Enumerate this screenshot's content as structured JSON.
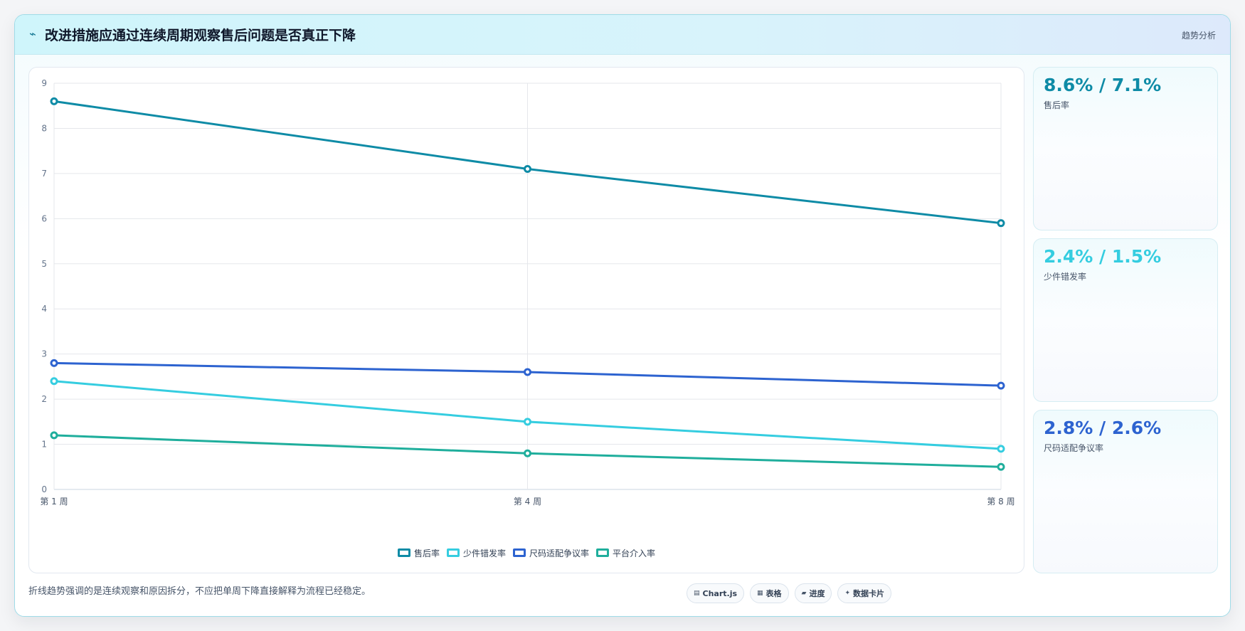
{
  "header": {
    "icon": "bolt-icon",
    "title": "改进措施应通过连续周期观察售后问题是否真正下降",
    "tag": "趋势分析"
  },
  "chart_data": {
    "type": "line",
    "categories": [
      "第 1 周",
      "第 4 周",
      "第 8 周"
    ],
    "ylim": [
      0,
      9
    ],
    "yticks": [
      0,
      1,
      2,
      3,
      4,
      5,
      6,
      7,
      8,
      9
    ],
    "grid": true,
    "legend_position": "bottom",
    "series": [
      {
        "name": "售后率",
        "color": "#0e8ba6",
        "values": [
          8.6,
          7.1,
          5.9
        ]
      },
      {
        "name": "少件错发率",
        "color": "#35cde0",
        "values": [
          2.4,
          1.5,
          0.9
        ]
      },
      {
        "name": "尺码适配争议率",
        "color": "#2d63d0",
        "values": [
          2.8,
          2.6,
          2.3
        ]
      },
      {
        "name": "平台介入率",
        "color": "#1fae9c",
        "values": [
          1.2,
          0.8,
          0.5
        ]
      }
    ]
  },
  "stats": [
    {
      "value": "8.6% / 7.1%",
      "label": "售后率",
      "color": "#0e8ba6"
    },
    {
      "value": "2.4% / 1.5%",
      "label": "少件错发率",
      "color": "#35cde0"
    },
    {
      "value": "2.8% / 2.6%",
      "label": "尺码适配争议率",
      "color": "#2d63d0"
    }
  ],
  "footer": {
    "note": "折线趋势强调的是连续观察和原因拆分，不应把单周下降直接解释为流程已经稳定。",
    "pills": [
      {
        "icon": "chart-icon",
        "label": "Chart.js"
      },
      {
        "icon": "table-icon",
        "label": "表格"
      },
      {
        "icon": "progress-icon",
        "label": "进度"
      },
      {
        "icon": "sparkle-icon",
        "label": "数据卡片"
      }
    ]
  }
}
